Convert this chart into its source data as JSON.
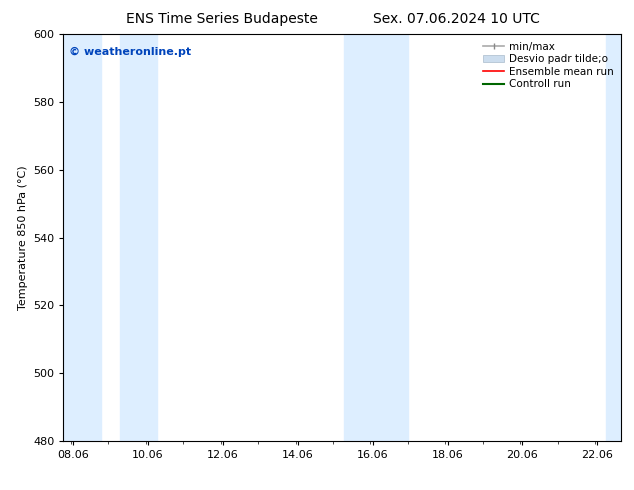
{
  "title_left": "ENS Time Series Budapeste",
  "title_right": "Sex. 07.06.2024 10 UTC",
  "ylabel": "Temperature 850 hPa (°C)",
  "xlim_left": 7.8,
  "xlim_right": 22.7,
  "ylim_bottom": 480,
  "ylim_top": 600,
  "yticks": [
    480,
    500,
    520,
    540,
    560,
    580,
    600
  ],
  "xtick_positions": [
    8.06,
    10.06,
    12.06,
    14.06,
    16.06,
    18.06,
    20.06,
    22.06
  ],
  "xtick_labels": [
    "08.06",
    "10.06",
    "12.06",
    "14.06",
    "16.06",
    "18.06",
    "20.06",
    "22.06"
  ],
  "shaded_bands": [
    {
      "x_start": 7.8,
      "x_end": 8.8,
      "color": "#ddeeff"
    },
    {
      "x_start": 9.3,
      "x_end": 10.3,
      "color": "#ddeeff"
    },
    {
      "x_start": 15.3,
      "x_end": 16.1,
      "color": "#ddeeff"
    },
    {
      "x_start": 16.1,
      "x_end": 17.0,
      "color": "#ddeeff"
    },
    {
      "x_start": 22.3,
      "x_end": 22.7,
      "color": "#ddeeff"
    }
  ],
  "watermark_text": "© weatheronline.pt",
  "watermark_color": "#0044bb",
  "watermark_fontsize": 8,
  "background_color": "#ffffff",
  "plot_background": "#ffffff",
  "title_fontsize": 10,
  "ylabel_fontsize": 8,
  "tick_fontsize": 8,
  "legend_fontsize": 7.5
}
